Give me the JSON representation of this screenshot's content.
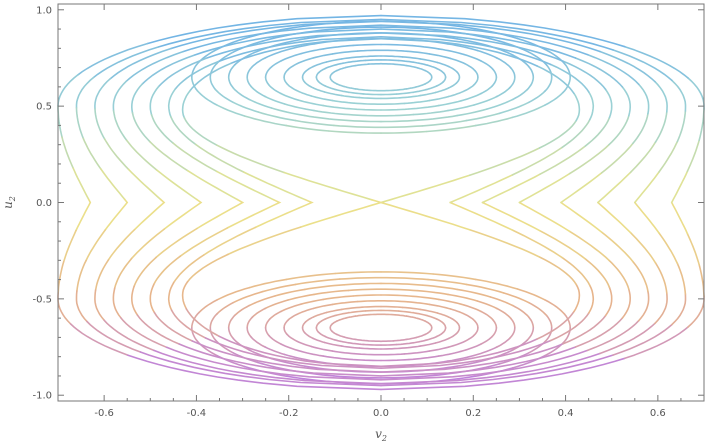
{
  "chart_data": {
    "type": "scatter",
    "title": "",
    "xlabel": "v",
    "xlabel_sub": "2",
    "ylabel": "u",
    "ylabel_sub": "2",
    "xlim": [
      -0.7,
      0.7
    ],
    "ylim": [
      -1.03,
      1.03
    ],
    "x_ticks": [
      -0.6,
      -0.4,
      -0.2,
      0.0,
      0.2,
      0.4,
      0.6
    ],
    "x_tick_labels": [
      "-0.6",
      "-0.4",
      "-0.2",
      "0.0",
      "0.2",
      "0.4",
      "0.6"
    ],
    "y_ticks": [
      -1.0,
      -0.5,
      0.0,
      0.5,
      1.0
    ],
    "y_tick_labels": [
      "-1.0",
      "-0.5",
      "0.0",
      "0.5",
      "1.0"
    ],
    "grid": false,
    "legend": "none",
    "color_by": "y",
    "colors": {
      "top": "#6aaee8",
      "upper": "#9cd2d4",
      "middle": "#ece58a",
      "lower": "#e7b58c",
      "bottom": "#b878ea",
      "axis": "#777777"
    },
    "series": [
      {
        "shape": "inner-ellipse",
        "y_center": 0.65,
        "half_width": 0.11,
        "half_height": 0.07
      },
      {
        "shape": "inner-ellipse",
        "y_center": 0.65,
        "half_width": 0.14,
        "half_height": 0.09
      },
      {
        "shape": "inner-ellipse",
        "y_center": 0.65,
        "half_width": 0.17,
        "half_height": 0.11
      },
      {
        "shape": "inner-ellipse",
        "y_center": 0.65,
        "half_width": 0.21,
        "half_height": 0.14
      },
      {
        "shape": "inner-ellipse",
        "y_center": 0.65,
        "half_width": 0.25,
        "half_height": 0.17
      },
      {
        "shape": "inner-ellipse",
        "y_center": 0.65,
        "half_width": 0.29,
        "half_height": 0.2
      },
      {
        "shape": "inner-ellipse",
        "y_center": 0.65,
        "half_width": 0.33,
        "half_height": 0.23
      },
      {
        "shape": "inner-ellipse",
        "y_center": 0.65,
        "half_width": 0.37,
        "half_height": 0.26
      },
      {
        "shape": "inner-ellipse",
        "y_center": 0.65,
        "half_width": 0.41,
        "half_height": 0.29
      },
      {
        "shape": "inner-ellipse",
        "y_center": -0.65,
        "half_width": 0.11,
        "half_height": 0.07
      },
      {
        "shape": "inner-ellipse",
        "y_center": -0.65,
        "half_width": 0.14,
        "half_height": 0.09
      },
      {
        "shape": "inner-ellipse",
        "y_center": -0.65,
        "half_width": 0.17,
        "half_height": 0.11
      },
      {
        "shape": "inner-ellipse",
        "y_center": -0.65,
        "half_width": 0.21,
        "half_height": 0.14
      },
      {
        "shape": "inner-ellipse",
        "y_center": -0.65,
        "half_width": 0.25,
        "half_height": 0.17
      },
      {
        "shape": "inner-ellipse",
        "y_center": -0.65,
        "half_width": 0.29,
        "half_height": 0.2
      },
      {
        "shape": "inner-ellipse",
        "y_center": -0.65,
        "half_width": 0.33,
        "half_height": 0.23
      },
      {
        "shape": "inner-ellipse",
        "y_center": -0.65,
        "half_width": 0.37,
        "half_height": 0.26
      },
      {
        "shape": "inner-ellipse",
        "y_center": -0.65,
        "half_width": 0.41,
        "half_height": 0.29
      },
      {
        "shape": "outer-hourglass",
        "half_width_at_peak": 0.7,
        "peak_u": 0.5,
        "width_at_center": 0.63,
        "extent_u": 0.97
      },
      {
        "shape": "outer-hourglass",
        "half_width_at_peak": 0.66,
        "peak_u": 0.5,
        "width_at_center": 0.55,
        "extent_u": 0.95
      },
      {
        "shape": "outer-hourglass",
        "half_width_at_peak": 0.62,
        "peak_u": 0.5,
        "width_at_center": 0.47,
        "extent_u": 0.94
      },
      {
        "shape": "outer-hourglass",
        "half_width_at_peak": 0.58,
        "peak_u": 0.5,
        "width_at_center": 0.39,
        "extent_u": 0.92
      },
      {
        "shape": "outer-hourglass",
        "half_width_at_peak": 0.54,
        "peak_u": 0.5,
        "width_at_center": 0.3,
        "extent_u": 0.9
      },
      {
        "shape": "outer-hourglass",
        "half_width_at_peak": 0.5,
        "peak_u": 0.5,
        "width_at_center": 0.22,
        "extent_u": 0.88
      },
      {
        "shape": "outer-hourglass",
        "half_width_at_peak": 0.46,
        "peak_u": 0.5,
        "width_at_center": 0.15,
        "extent_u": 0.86
      },
      {
        "shape": "separatrix",
        "half_width_at_peak": 0.43,
        "peak_u": 0.48,
        "width_at_center": 0.0,
        "extent_u": 0.85
      }
    ]
  }
}
